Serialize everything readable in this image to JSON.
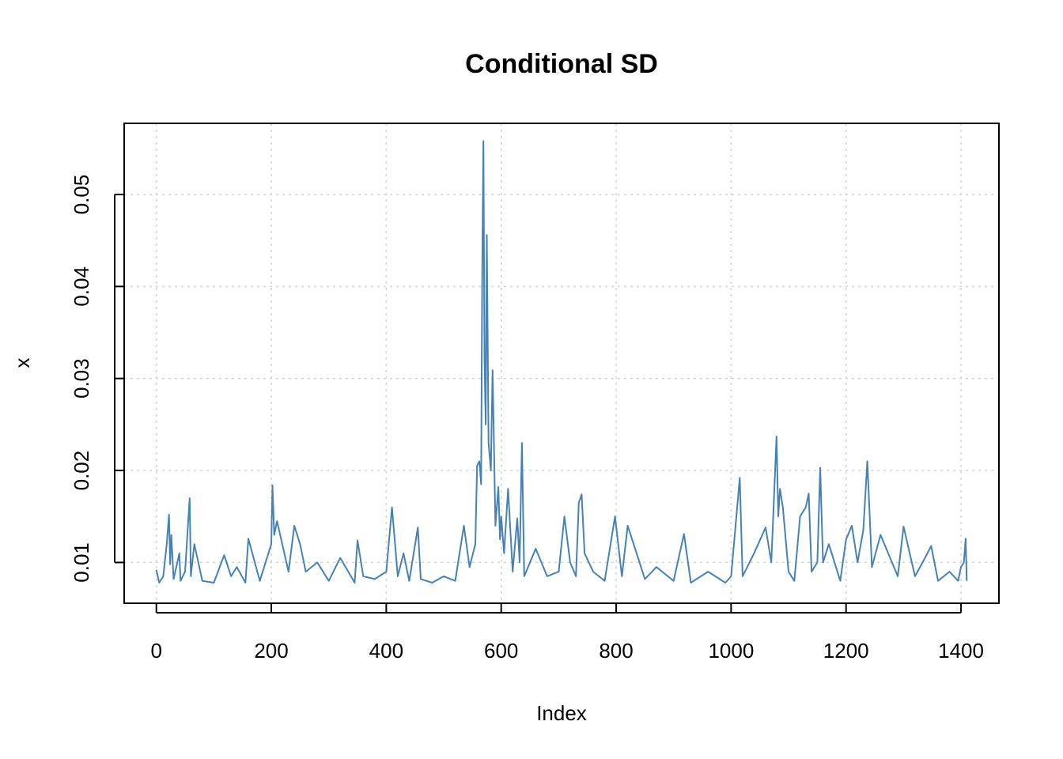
{
  "chart_data": {
    "type": "line",
    "title": "Conditional SD",
    "xlabel": "Index",
    "ylabel": "x",
    "xlim": [
      0,
      1410
    ],
    "ylim": [
      0.0075,
      0.0558
    ],
    "x_ticks": [
      0,
      200,
      400,
      600,
      800,
      1000,
      1200,
      1400
    ],
    "x_tick_labels": [
      "0",
      "200",
      "400",
      "600",
      "800",
      "1000",
      "1200",
      "1400"
    ],
    "y_ticks": [
      0.01,
      0.02,
      0.03,
      0.04,
      0.05
    ],
    "y_tick_labels": [
      "0.01",
      "0.02",
      "0.03",
      "0.04",
      "0.05"
    ],
    "grid": true,
    "line_color": "#4682B4",
    "series": [
      {
        "x": [
          0,
          5,
          12,
          18,
          22,
          24,
          26,
          30,
          40,
          42,
          50,
          58,
          60,
          66,
          80,
          100,
          118,
          130,
          140,
          155,
          160,
          180,
          200,
          202,
          205,
          210,
          230,
          240,
          250,
          260,
          280,
          300,
          320,
          345,
          350,
          360,
          380,
          400,
          410,
          420,
          430,
          440,
          455,
          460,
          480,
          500,
          520,
          535,
          545,
          555,
          558,
          562,
          565,
          567,
          569,
          571,
          573,
          575,
          578,
          582,
          585,
          590,
          595,
          598,
          600,
          605,
          612,
          620,
          628,
          632,
          636,
          640,
          660,
          680,
          700,
          710,
          720,
          730,
          735,
          740,
          745,
          760,
          780,
          798,
          810,
          820,
          850,
          870,
          900,
          918,
          930,
          960,
          990,
          1000,
          1015,
          1020,
          1040,
          1060,
          1070,
          1079,
          1082,
          1085,
          1090,
          1100,
          1110,
          1120,
          1130,
          1135,
          1140,
          1150,
          1155,
          1160,
          1170,
          1190,
          1200,
          1210,
          1220,
          1230,
          1237,
          1245,
          1260,
          1290,
          1300,
          1320,
          1340,
          1348,
          1360,
          1380,
          1395,
          1400,
          1405,
          1408,
          1410
        ],
        "values": [
          0.0092,
          0.0078,
          0.0085,
          0.012,
          0.0152,
          0.0098,
          0.013,
          0.0082,
          0.011,
          0.008,
          0.009,
          0.017,
          0.0085,
          0.012,
          0.008,
          0.0078,
          0.0108,
          0.0085,
          0.0095,
          0.0078,
          0.0126,
          0.008,
          0.012,
          0.0184,
          0.013,
          0.0145,
          0.009,
          0.014,
          0.012,
          0.009,
          0.01,
          0.008,
          0.0105,
          0.0078,
          0.0124,
          0.0085,
          0.0082,
          0.009,
          0.016,
          0.0085,
          0.011,
          0.008,
          0.0138,
          0.0082,
          0.0078,
          0.0085,
          0.008,
          0.014,
          0.0095,
          0.012,
          0.0205,
          0.021,
          0.0185,
          0.0415,
          0.0558,
          0.032,
          0.025,
          0.0456,
          0.023,
          0.02,
          0.0309,
          0.014,
          0.0182,
          0.0125,
          0.015,
          0.011,
          0.018,
          0.009,
          0.0148,
          0.01,
          0.023,
          0.0085,
          0.0115,
          0.0085,
          0.009,
          0.015,
          0.01,
          0.0085,
          0.0165,
          0.0174,
          0.011,
          0.009,
          0.008,
          0.015,
          0.0085,
          0.014,
          0.0082,
          0.0095,
          0.008,
          0.0131,
          0.0078,
          0.009,
          0.0078,
          0.0085,
          0.0192,
          0.0085,
          0.011,
          0.0138,
          0.01,
          0.0237,
          0.015,
          0.018,
          0.016,
          0.009,
          0.008,
          0.015,
          0.016,
          0.0175,
          0.009,
          0.01,
          0.0203,
          0.01,
          0.012,
          0.008,
          0.0125,
          0.014,
          0.01,
          0.0135,
          0.021,
          0.0095,
          0.013,
          0.0085,
          0.0139,
          0.0085,
          0.0108,
          0.0118,
          0.008,
          0.009,
          0.008,
          0.0095,
          0.01,
          0.0126,
          0.008
        ]
      }
    ]
  }
}
